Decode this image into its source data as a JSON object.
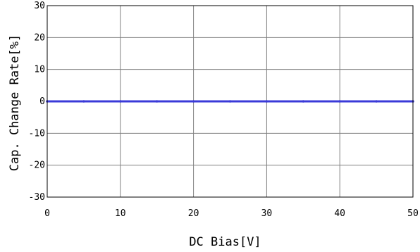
{
  "chart_data": {
    "type": "line",
    "title": "",
    "xlabel": "DC Bias[V]",
    "ylabel": "Cap. Change Rate[%]",
    "xlim": [
      0,
      50
    ],
    "ylim": [
      -30,
      30
    ],
    "xticks": [
      0,
      10,
      20,
      30,
      40,
      50
    ],
    "yticks": [
      -30,
      -20,
      -10,
      0,
      10,
      20,
      30
    ],
    "xtick_labels": [
      "0",
      "10",
      "20",
      "30",
      "40",
      "50"
    ],
    "ytick_labels": [
      "-30",
      "-20",
      "-10",
      "0",
      "10",
      "20",
      "30"
    ],
    "grid": true,
    "legend": "none",
    "series": [
      {
        "color": "#3a3ad8",
        "x": [
          0,
          5,
          10,
          15,
          20,
          25,
          30,
          35,
          40,
          45,
          50
        ],
        "y": [
          0,
          0,
          0,
          0,
          0,
          0,
          0,
          0,
          0,
          0,
          0
        ]
      }
    ],
    "colors": {
      "grid": "#808080",
      "frame": "#000000",
      "background": "#ffffff"
    }
  }
}
